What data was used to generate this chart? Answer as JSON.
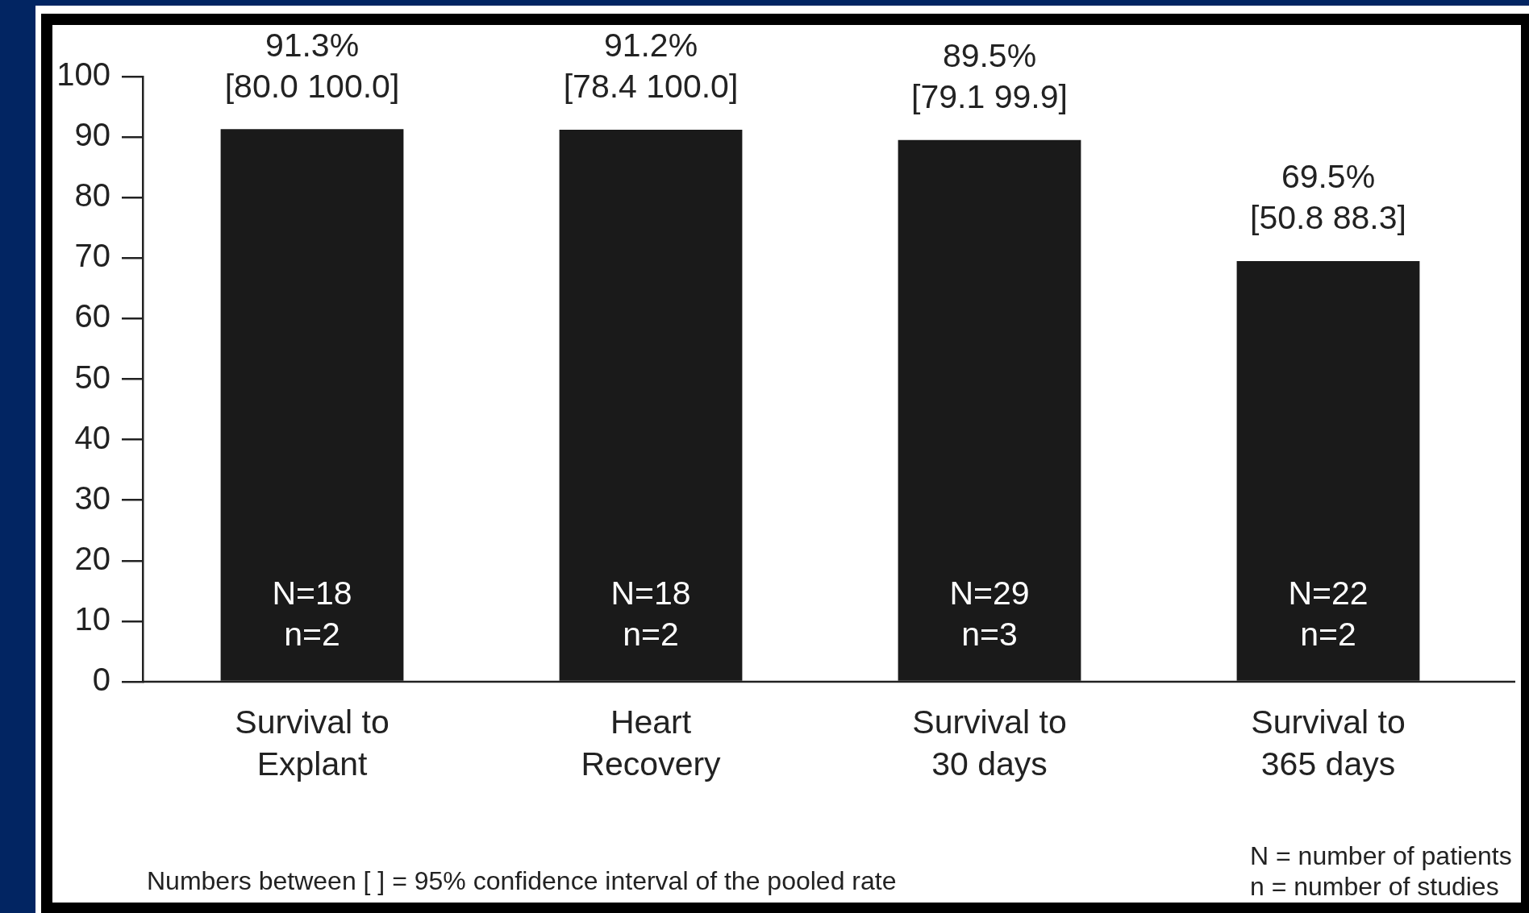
{
  "chart_data": {
    "type": "bar",
    "categories": [
      "Survival to Explant",
      "Heart Recovery",
      "Survival to 30 days",
      "Survival to 365 days"
    ],
    "values": [
      91.3,
      91.2,
      89.5,
      69.5
    ],
    "color": "#1a1a1a",
    "value_labels": [
      "91.3%\n[80.0 100.0]",
      "91.2%\n[78.4 100.0]",
      "89.5%\n[79.1 99.9]",
      "69.5%\n[50.8 88.3]"
    ],
    "ylim": [
      0,
      100
    ],
    "yticks": [
      0,
      10,
      20,
      30,
      40,
      50,
      60,
      70,
      80,
      90,
      100
    ],
    "annotations": [
      "N=18\nn=2",
      "N=18\nn=2",
      "N=29\nn=3",
      "N=22\nn=2",
      "Numbers between [ ] = 95% confidence interval of the pooled rate",
      "N = number of patients",
      "n = number of studies"
    ]
  }
}
